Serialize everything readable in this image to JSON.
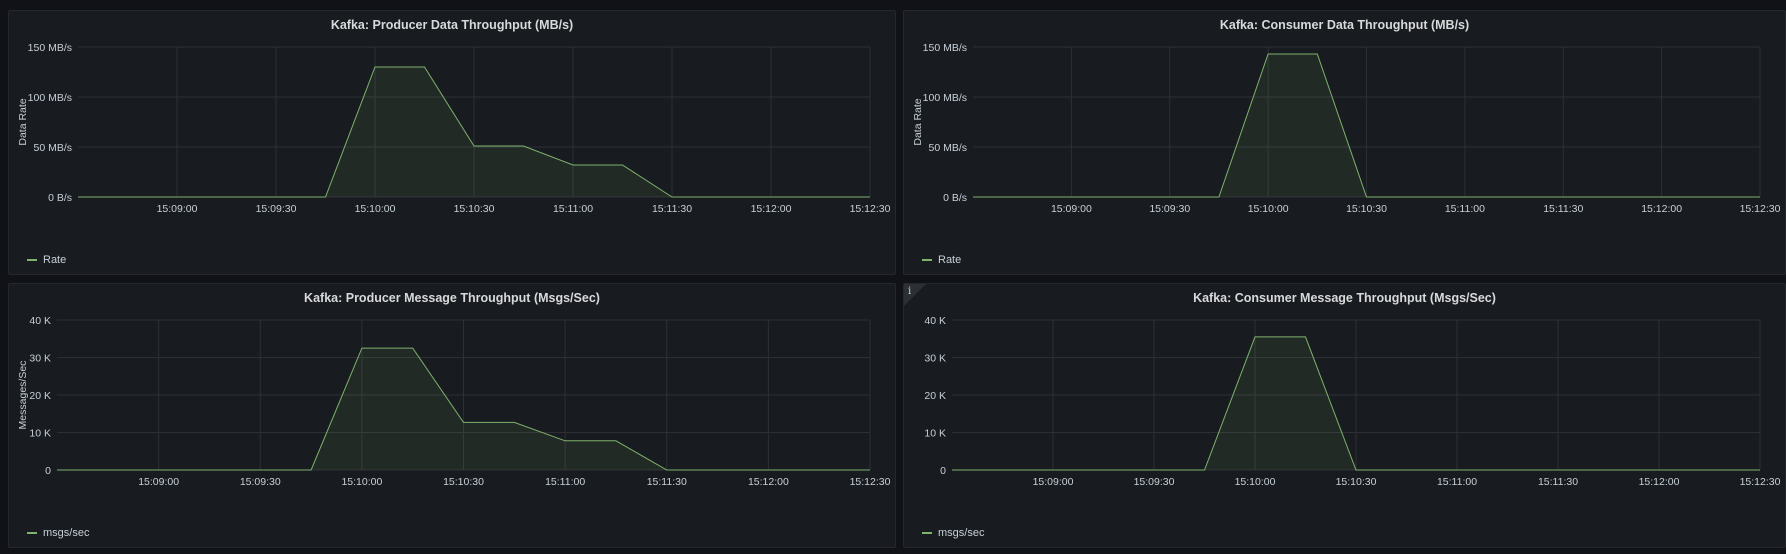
{
  "colors": {
    "series": "#7eb26d",
    "grid": "#2c3035",
    "text": "#c7d0d9"
  },
  "panels": [
    {
      "title": "Kafka: Producer Data Throughput (MB/s)",
      "legend": "Rate",
      "info_icon": "",
      "chart_data": {
        "type": "area",
        "title": "Kafka: Producer Data Throughput (MB/s)",
        "ylabel": "Data Rate",
        "ylim": [
          0,
          150
        ],
        "yticks": [
          {
            "value": 0,
            "label": "0 B/s"
          },
          {
            "value": 50,
            "label": "50 MB/s"
          },
          {
            "value": 100,
            "label": "100 MB/s"
          },
          {
            "value": 150,
            "label": "150 MB/s"
          }
        ],
        "xticks": [
          "15:09:00",
          "15:09:30",
          "15:10:00",
          "15:10:30",
          "15:11:00",
          "15:11:30",
          "15:12:00",
          "15:12:30"
        ],
        "series": [
          {
            "name": "Rate",
            "points": [
              [
                "15:08:30",
                0
              ],
              [
                "15:09:45",
                0
              ],
              [
                "15:10:00",
                130
              ],
              [
                "15:10:15",
                130
              ],
              [
                "15:10:30",
                51
              ],
              [
                "15:10:45",
                51
              ],
              [
                "15:11:00",
                32
              ],
              [
                "15:11:15",
                32
              ],
              [
                "15:11:30",
                0
              ],
              [
                "15:12:30",
                0
              ]
            ]
          }
        ]
      }
    },
    {
      "title": "Kafka: Consumer Data Throughput (MB/s)",
      "legend": "Rate",
      "info_icon": "",
      "chart_data": {
        "type": "area",
        "title": "Kafka: Consumer Data Throughput (MB/s)",
        "ylabel": "Data Rate",
        "ylim": [
          0,
          150
        ],
        "yticks": [
          {
            "value": 0,
            "label": "0 B/s"
          },
          {
            "value": 50,
            "label": "50 MB/s"
          },
          {
            "value": 100,
            "label": "100 MB/s"
          },
          {
            "value": 150,
            "label": "150 MB/s"
          }
        ],
        "xticks": [
          "15:09:00",
          "15:09:30",
          "15:10:00",
          "15:10:30",
          "15:11:00",
          "15:11:30",
          "15:12:00",
          "15:12:30"
        ],
        "series": [
          {
            "name": "Rate",
            "points": [
              [
                "15:08:30",
                0
              ],
              [
                "15:09:45",
                0
              ],
              [
                "15:10:00",
                143
              ],
              [
                "15:10:15",
                143
              ],
              [
                "15:10:30",
                0
              ],
              [
                "15:12:30",
                0
              ]
            ]
          }
        ]
      }
    },
    {
      "title": "Kafka: Producer Message Throughput (Msgs/Sec)",
      "legend": "msgs/sec",
      "info_icon": "",
      "chart_data": {
        "type": "area",
        "title": "Kafka: Producer Message Throughput (Msgs/Sec)",
        "ylabel": "Messages/Sec",
        "ylim": [
          0,
          40000
        ],
        "yticks": [
          {
            "value": 0,
            "label": "0"
          },
          {
            "value": 10000,
            "label": "10 K"
          },
          {
            "value": 20000,
            "label": "20 K"
          },
          {
            "value": 30000,
            "label": "30 K"
          },
          {
            "value": 40000,
            "label": "40 K"
          }
        ],
        "xticks": [
          "15:09:00",
          "15:09:30",
          "15:10:00",
          "15:10:30",
          "15:11:00",
          "15:11:30",
          "15:12:00",
          "15:12:30"
        ],
        "series": [
          {
            "name": "msgs/sec",
            "points": [
              [
                "15:08:30",
                0
              ],
              [
                "15:09:45",
                0
              ],
              [
                "15:10:00",
                32500
              ],
              [
                "15:10:15",
                32500
              ],
              [
                "15:10:30",
                12700
              ],
              [
                "15:10:45",
                12700
              ],
              [
                "15:11:00",
                7800
              ],
              [
                "15:11:15",
                7800
              ],
              [
                "15:11:30",
                0
              ],
              [
                "15:12:30",
                0
              ]
            ]
          }
        ]
      }
    },
    {
      "title": "Kafka: Consumer Message Throughput (Msgs/Sec)",
      "legend": "msgs/sec",
      "info_icon": "i",
      "chart_data": {
        "type": "area",
        "title": "Kafka: Consumer Message Throughput (Msgs/Sec)",
        "ylabel": "",
        "ylim": [
          0,
          40000
        ],
        "yticks": [
          {
            "value": 0,
            "label": "0"
          },
          {
            "value": 10000,
            "label": "10 K"
          },
          {
            "value": 20000,
            "label": "20 K"
          },
          {
            "value": 30000,
            "label": "30 K"
          },
          {
            "value": 40000,
            "label": "40 K"
          }
        ],
        "xticks": [
          "15:09:00",
          "15:09:30",
          "15:10:00",
          "15:10:30",
          "15:11:00",
          "15:11:30",
          "15:12:00",
          "15:12:30"
        ],
        "series": [
          {
            "name": "msgs/sec",
            "points": [
              [
                "15:08:30",
                0
              ],
              [
                "15:09:45",
                0
              ],
              [
                "15:10:00",
                35500
              ],
              [
                "15:10:15",
                35500
              ],
              [
                "15:10:30",
                0
              ],
              [
                "15:12:30",
                0
              ]
            ]
          }
        ]
      }
    }
  ]
}
